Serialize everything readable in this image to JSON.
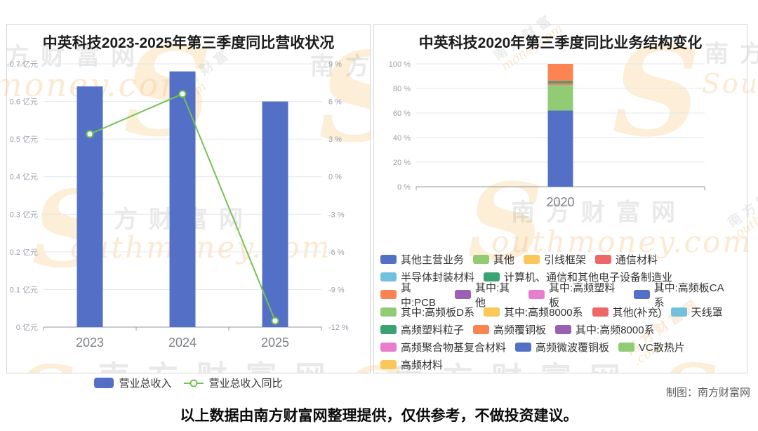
{
  "watermark": {
    "cn": "南方财富网",
    "cn_short": "南方财富",
    "en_full": "Southmoney.com",
    "en_outh": "outhmoney.com",
    "en_money": "money.com",
    "en_com": ".com",
    "s": "S"
  },
  "footer": {
    "credit": "制图：南方财富网",
    "note": "以上数据由南方财富网整理提供，仅供参考，不做投资建议。"
  },
  "chart_data": [
    {
      "type": "bar",
      "subtype": "bar+line-dual-axis",
      "title": "中英科技2023-2025年第三季度同比营收状况",
      "categories": [
        "2023",
        "2024",
        "2025"
      ],
      "series": [
        {
          "name": "营业总收入",
          "type": "bar",
          "unit": "亿元",
          "values": [
            0.64,
            0.68,
            0.6
          ],
          "color": "#5470c6",
          "axis": "left"
        },
        {
          "name": "营业总收入同比",
          "type": "line",
          "unit": "%",
          "values": [
            3.4,
            6.6,
            -11.5
          ],
          "color": "#75c254",
          "axis": "right"
        }
      ],
      "left_axis": {
        "min": 0,
        "max": 0.7,
        "step": 0.1,
        "unit": "亿元"
      },
      "right_axis": {
        "min": -12,
        "max": 9,
        "step": 3,
        "unit": "%"
      },
      "y_left_ticks": [
        "0.7 亿元",
        "0.6 亿元",
        "0.5 亿元",
        "0.4 亿元",
        "0.3 亿元",
        "0.2 亿元",
        "0.1 亿元",
        "0 亿元"
      ],
      "y_right_ticks": [
        "9 %",
        "6 %",
        "3 %",
        "0 %",
        "-3 %",
        "-6 %",
        "-9 %",
        "-12 %"
      ],
      "grid": true,
      "legend_position": "bottom",
      "legend": [
        {
          "label": "营业总收入",
          "marker": "bar",
          "color": "#5470c6"
        },
        {
          "label": "营业总收入同比",
          "marker": "line",
          "color": "#75c254"
        }
      ]
    },
    {
      "type": "bar",
      "subtype": "stacked-percent",
      "title": "中英科技2020年第三季度同比业务结构变化",
      "categories": [
        "2020"
      ],
      "y_axis": {
        "min": 0,
        "max": 100,
        "step": 20,
        "unit": "%"
      },
      "y_ticks": [
        "100 %",
        "80 %",
        "60 %",
        "40 %",
        "20 %",
        "0 %"
      ],
      "grid": true,
      "segments_bottom_to_top": [
        {
          "name": "其他主营业务",
          "value": 62,
          "color": "#5470c6"
        },
        {
          "name": "其他",
          "value": 21,
          "color": "#91cc75"
        },
        {
          "name": "通信材料",
          "value": 1.5,
          "color": "#ee6666"
        },
        {
          "name": "计算机、通信和其他电子设备制造业",
          "value": 1.5,
          "color": "#3ba272"
        },
        {
          "name": "其中:PCB",
          "value": 14,
          "color": "#fc8452"
        }
      ],
      "legend_position": "bottom",
      "legend_rows": [
        [
          {
            "label": "其他主营业务",
            "color": "#5470c6"
          },
          {
            "label": "其他",
            "color": "#91cc75"
          },
          {
            "label": "引线框架",
            "color": "#fac858"
          },
          {
            "label": "通信材料",
            "color": "#ee6666"
          }
        ],
        [
          {
            "label": "半导体封装材料",
            "color": "#73c0de"
          },
          {
            "label": "计算机、通信和其他电子设备制造业",
            "color": "#3ba272"
          }
        ],
        [
          {
            "label": "其中:PCB",
            "color": "#fc8452"
          },
          {
            "label": "其中:其他",
            "color": "#9a60b4"
          },
          {
            "label": "其中:高频塑料板",
            "color": "#ea7ccc"
          },
          {
            "label": "其中:高频板CA系",
            "color": "#5470c6"
          }
        ],
        [
          {
            "label": "其中:高频板D系",
            "color": "#91cc75"
          },
          {
            "label": "其中:高频8000系",
            "color": "#fac858"
          },
          {
            "label": "其他(补充)",
            "color": "#ee6666"
          },
          {
            "label": "天线罩",
            "color": "#73c0de"
          }
        ],
        [
          {
            "label": "高频塑料粒子",
            "color": "#3ba272"
          },
          {
            "label": "高频覆铜板",
            "color": "#fc8452"
          },
          {
            "label": "其中:高频8000系",
            "color": "#9a60b4"
          }
        ],
        [
          {
            "label": "高频聚合物基复合材料",
            "color": "#ea7ccc"
          },
          {
            "label": "高频微波覆铜板",
            "color": "#5470c6"
          },
          {
            "label": "VC散热片",
            "color": "#91cc75"
          }
        ],
        [
          {
            "label": "高频材料",
            "color": "#fac858"
          }
        ]
      ]
    }
  ]
}
